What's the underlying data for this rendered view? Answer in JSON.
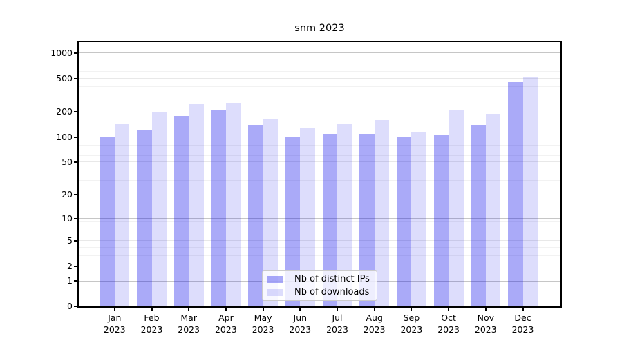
{
  "figure": {
    "background": "#ffffff"
  },
  "chart_data": {
    "type": "bar",
    "title": "snm 2023",
    "categories": [
      "Jan",
      "Feb",
      "Mar",
      "Apr",
      "May",
      "Jun",
      "Jul",
      "Aug",
      "Sep",
      "Oct",
      "Nov",
      "Dec"
    ],
    "category_year": "2023",
    "series": [
      {
        "name": "Nb of distinct IPs",
        "color": "rgba(0,0,235,0.335)",
        "values": [
          100,
          120,
          180,
          210,
          140,
          100,
          110,
          110,
          100,
          105,
          140,
          450
        ]
      },
      {
        "name": "Nb of downloads",
        "color": "rgba(0,0,235,0.135)",
        "values": [
          145,
          200,
          245,
          255,
          165,
          130,
          145,
          160,
          115,
          210,
          190,
          510
        ]
      }
    ],
    "yscale": "log1p",
    "ylim": [
      0,
      1350
    ],
    "yticks": [
      0,
      1,
      2,
      5,
      10,
      20,
      50,
      100,
      200,
      500,
      1000
    ],
    "minor_yticks": [
      3,
      4,
      6,
      7,
      8,
      9,
      30,
      40,
      60,
      70,
      80,
      90,
      300,
      400,
      600,
      700,
      800,
      900
    ],
    "grid": true,
    "legend_position": "lower center",
    "gridline_colors": {
      "power_of_ten": "#c6c6c6",
      "labeled": "#e8e8e8",
      "minor": "#f2f2f2"
    }
  }
}
